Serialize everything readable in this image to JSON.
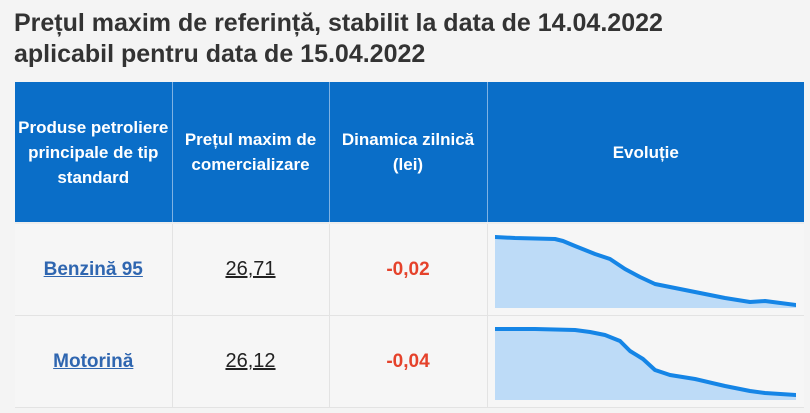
{
  "header": {
    "title_line1": "Prețul maxim de referință, stabilit la data de 14.04.2022",
    "title_line2": "aplicabil pentru data de 15.04.2022"
  },
  "table": {
    "columns": [
      "Produse petroliere principale de tip standard",
      "Prețul maxim de comercializare",
      "Dinamica zilnică (lei)",
      "Evoluție"
    ],
    "rows": [
      {
        "product": "Benzină 95",
        "price": "26,71",
        "dynamics": "-0,02"
      },
      {
        "product": "Motorină",
        "price": "26,12",
        "dynamics": "-0,04"
      }
    ]
  },
  "colors": {
    "header_bg": "#0a6ec8",
    "link": "#2f66b0",
    "negative": "#e5422b",
    "sparkline_line": "#1585e6",
    "sparkline_fill": "#a9d1f7"
  }
}
